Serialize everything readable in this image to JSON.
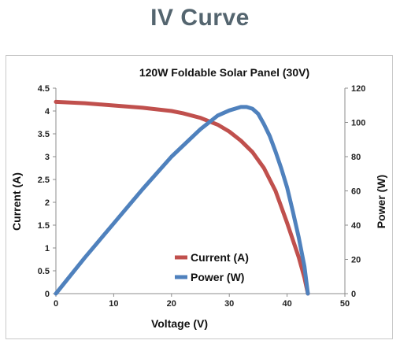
{
  "page": {
    "title": "IV Curve"
  },
  "colors": {
    "current": "#c0504d",
    "power": "#4f81bd",
    "title": "#54656f"
  },
  "chart_data": {
    "type": "line",
    "title": "120W Foldable Solar Panel (30V)",
    "xlabel": "Voltage (V)",
    "ylabel": "Current (A)",
    "y2label": "Power (W)",
    "xlim": [
      0,
      50
    ],
    "ylim": [
      0,
      4.5
    ],
    "y2lim": [
      0,
      120
    ],
    "x_ticks": [
      "0",
      "10",
      "20",
      "30",
      "40",
      "50"
    ],
    "y_ticks": [
      "0",
      "0.5",
      "1",
      "1.5",
      "2",
      "2.5",
      "3",
      "3.5",
      "4",
      "4.5"
    ],
    "y2_ticks": [
      "0",
      "20",
      "40",
      "60",
      "80",
      "100",
      "120"
    ],
    "grid": false,
    "legend_position": "bottom-center",
    "series": [
      {
        "name": "Current (A)",
        "axis": "left",
        "color": "#c0504d",
        "x": [
          0,
          5,
          10,
          15,
          20,
          22,
          25,
          28,
          30,
          32,
          34,
          36,
          38,
          40,
          42,
          43,
          43.6
        ],
        "y": [
          4.2,
          4.17,
          4.12,
          4.07,
          4.0,
          3.95,
          3.85,
          3.7,
          3.55,
          3.35,
          3.1,
          2.75,
          2.25,
          1.55,
          0.8,
          0.35,
          0
        ]
      },
      {
        "name": "Power (W)",
        "axis": "right",
        "color": "#4f81bd",
        "x": [
          0,
          5,
          10,
          15,
          20,
          25,
          28,
          30,
          32,
          33,
          34,
          35,
          36,
          37,
          38,
          39,
          40,
          41,
          42,
          43,
          43.6
        ],
        "y": [
          0,
          21,
          41,
          61,
          80,
          96,
          104,
          107,
          109,
          109,
          108,
          105,
          99,
          92,
          83,
          73,
          62,
          48,
          33,
          16,
          0
        ]
      }
    ]
  }
}
